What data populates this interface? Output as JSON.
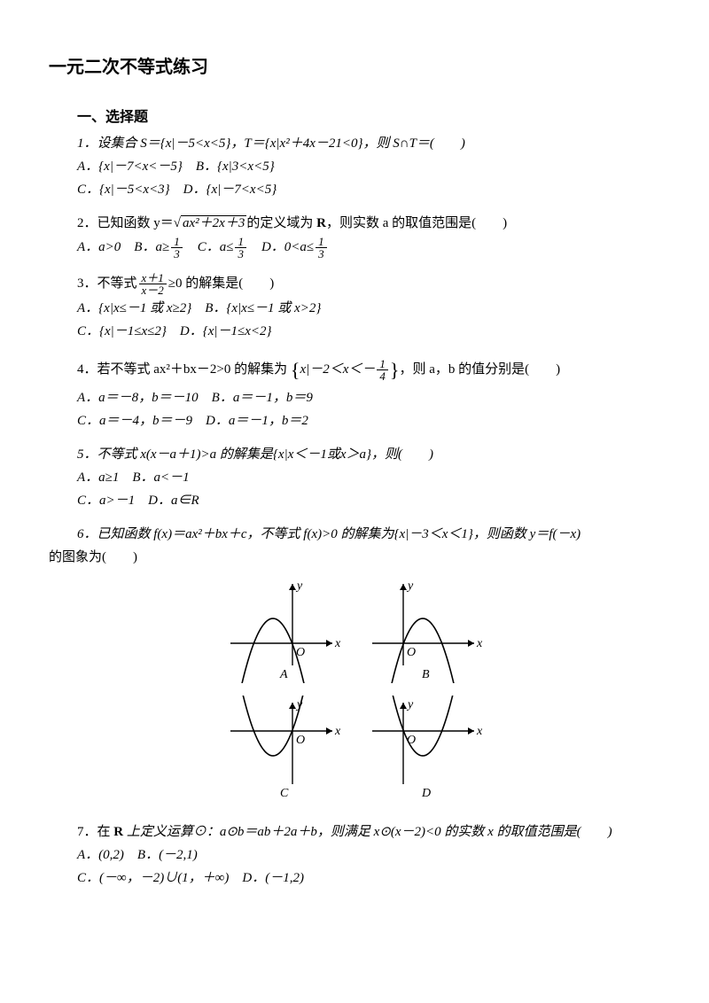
{
  "title": "一元二次不等式练习",
  "section1": "一、选择题",
  "q1": {
    "stem": "1．设集合 S＝{x|－5<x<5}，T＝{x|x²＋4x－21<0}，则 S∩T＝(　　)",
    "A": "A．{x|－7<x<－5}　B．{x|3<x<5}",
    "C": "C．{x|－5<x<3}　D．{x|－7<x<5}"
  },
  "q2": {
    "stem_pre": "2．已知函数 y＝",
    "sqrt_inner": "ax²＋2x＋3",
    "stem_mid": "的定义域为 ",
    "R": "R",
    "stem_post": "，则实数 a 的取值范围是(　　)",
    "A_pre": "A．a>0　B．a≥",
    "A_frac_num": "1",
    "A_frac_den": "3",
    "B_pre": "　C．a≤",
    "B_frac_num": "1",
    "B_frac_den": "3",
    "C_pre": "　D．0<a≤",
    "C_frac_num": "1",
    "C_frac_den": "3"
  },
  "q3": {
    "stem_pre": "3．不等式",
    "frac_num": "x＋1",
    "frac_den": "x－2",
    "stem_post": "≥0 的解集是(　　)",
    "A": "A．{x|x≤－1 或 x≥2}　B．{x|x≤－1 或 x>2}",
    "C": "C．{x|－1≤x≤2}　D．{x|－1≤x<2}"
  },
  "q4": {
    "stem_pre": "4．若不等式 ax²＋bx－2>0 的解集为",
    "set_inner_pre": "x|－2＜x＜－",
    "frac_num": "1",
    "frac_den": "4",
    "stem_post": "，则 a，b 的值分别是(　　)",
    "A": "A．a＝－8，b＝－10　B．a＝－1，b＝9",
    "C": "C．a＝－4，b＝－9　D．a＝－1，b＝2"
  },
  "q5": {
    "stem": "5．不等式 x(x－a＋1)>a 的解集是{x|x＜－1或x＞a}，则(　　)",
    "A": "A．a≥1　B．a<－1",
    "C": "C．a>－1　D．a∈R"
  },
  "q6": {
    "stem_pre": "6．已知函数 f(x)＝ax²＋bx＋c，不等式 f(x)>0 的解集为{x|－3＜x＜1}，则函数 y＝f(－x)",
    "stem_line2": "的图象为(　　)",
    "labels": {
      "A": "A",
      "B": "B",
      "C": "C",
      "D": "D"
    },
    "axis": {
      "x": "x",
      "y": "y",
      "O": "O"
    }
  },
  "q7": {
    "stem_pre": "7．在 ",
    "R": "R",
    "stem_post": " 上定义运算⊙：a⊙b＝ab＋2a＋b，则满足 x⊙(x－2)<0 的实数 x 的取值范围是(　　)",
    "A": "A．(0,2)　B．(－2,1)",
    "C": "C．(－∞，－2)∪(1，＋∞)　D．(－1,2)"
  },
  "style": {
    "stroke": "#000000",
    "fill": "#ffffff",
    "axis_width": 1.4,
    "curve_width": 1.6,
    "font": "italic 14px Times New Roman"
  }
}
